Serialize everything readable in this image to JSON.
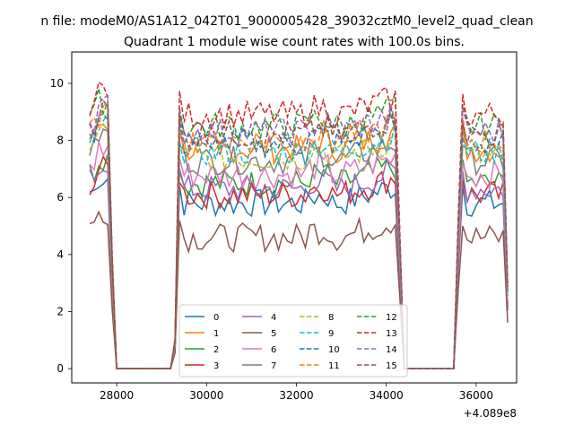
{
  "figure": {
    "suptitle": "n file: modeM0/AS1A12_042T01_9000005428_39032cztM0_level2_quad_clean",
    "title": "Quadrant 1 module wise count rates with 100.0s bins."
  },
  "chart_data": {
    "type": "line",
    "title": "Quadrant 1 module wise count rates with 100.0s bins.",
    "xlabel": "",
    "ylabel": "",
    "x_offset_label": "+4.089e8",
    "xlim": [
      27000,
      36900
    ],
    "ylim": [
      -0.5,
      11.1
    ],
    "xticks": [
      28000,
      30000,
      32000,
      34000,
      36000
    ],
    "xtick_labels": [
      "28000",
      "30000",
      "32000",
      "34000",
      "36000"
    ],
    "yticks": [
      0,
      2,
      4,
      6,
      8,
      10
    ],
    "ytick_labels": [
      "0",
      "2",
      "4",
      "6",
      "8",
      "10"
    ],
    "grid": false,
    "legend": {
      "placement": "lower center",
      "columns": 4
    },
    "segments": [
      {
        "x_start": 27400,
        "x_end": 28000,
        "decay_x": 27900
      },
      {
        "x_start": 29200,
        "x_end": 34300,
        "decay_x": 34300
      },
      {
        "x_start": 35500,
        "x_end": 36700,
        "decay_x": 36700
      }
    ],
    "series": [
      {
        "name": "0",
        "color": "#1f77b4",
        "dash": "solid",
        "level": 5.8
      },
      {
        "name": "1",
        "color": "#ff7f0e",
        "dash": "solid",
        "level": 7.7
      },
      {
        "name": "2",
        "color": "#2ca02c",
        "dash": "solid",
        "level": 6.5
      },
      {
        "name": "3",
        "color": "#d62728",
        "dash": "solid",
        "level": 6.1
      },
      {
        "name": "4",
        "color": "#9467bd",
        "dash": "solid",
        "level": 6.3
      },
      {
        "name": "5",
        "color": "#8c564b",
        "dash": "solid",
        "level": 4.6
      },
      {
        "name": "6",
        "color": "#e377c2",
        "dash": "solid",
        "level": 6.8
      },
      {
        "name": "7",
        "color": "#7f7f7f",
        "dash": "solid",
        "level": 7.3
      },
      {
        "name": "8",
        "color": "#bcbd22",
        "dash": "dashed",
        "level": 7.4
      },
      {
        "name": "9",
        "color": "#17becf",
        "dash": "dashed",
        "level": 7.6
      },
      {
        "name": "10",
        "color": "#1f77b4",
        "dash": "dashed",
        "level": 7.9
      },
      {
        "name": "11",
        "color": "#ff7f0e",
        "dash": "dashed",
        "level": 8.0
      },
      {
        "name": "12",
        "color": "#2ca02c",
        "dash": "dashed",
        "level": 8.5
      },
      {
        "name": "13",
        "color": "#d62728",
        "dash": "dashed",
        "level": 8.9
      },
      {
        "name": "14",
        "color": "#9467bd",
        "dash": "dashed",
        "level": 8.3
      },
      {
        "name": "15",
        "color": "#8c564b",
        "dash": "dashed",
        "level": 8.2
      }
    ]
  }
}
